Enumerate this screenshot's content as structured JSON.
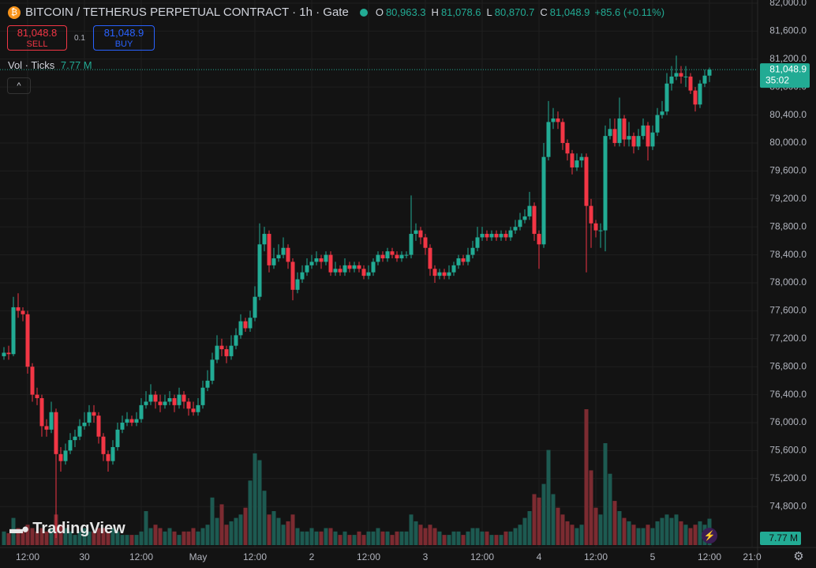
{
  "chart_data": {
    "type": "candlestick",
    "title": "BITCOIN / TETHERUS PERPETUAL CONTRACT · 1h · Gate",
    "legend": [
      {
        "key": "O",
        "label": "80,963.3"
      },
      {
        "key": "H",
        "label": "81,078.6"
      },
      {
        "key": "L",
        "label": "80,870.7"
      },
      {
        "key": "C",
        "label": "81,048.9"
      }
    ],
    "change": "+85.6 (+0.11%)",
    "volume_title": "Vol · Ticks",
    "volume_label": "7.77 M",
    "last_price_label": "81,048.9",
    "countdown": "35:02",
    "up_color": "#22ab94",
    "down_color": "#f23645",
    "up_volume_color": "#1d5a51",
    "down_volume_color": "#7c2b31",
    "grid": true,
    "ylim": [
      74192,
      82045
    ],
    "yticks": [
      {
        "value": 74800,
        "label": "74,800.0"
      },
      {
        "value": 75200,
        "label": "75,200.0"
      },
      {
        "value": 75600,
        "label": "75,600.0"
      },
      {
        "value": 76000,
        "label": "76,000.0"
      },
      {
        "value": 76400,
        "label": "76,400.0"
      },
      {
        "value": 76800,
        "label": "76,800.0"
      },
      {
        "value": 77200,
        "label": "77,200.0"
      },
      {
        "value": 77600,
        "label": "77,600.0"
      },
      {
        "value": 78000,
        "label": "78,000.0"
      },
      {
        "value": 78400,
        "label": "78,400.0"
      },
      {
        "value": 78800,
        "label": "78,800.0"
      },
      {
        "value": 79200,
        "label": "79,200.0"
      },
      {
        "value": 79600,
        "label": "79,600.0"
      },
      {
        "value": 80000,
        "label": "80,000.0"
      },
      {
        "value": 80400,
        "label": "80,400.0"
      },
      {
        "value": 80800,
        "label": "80,800.0"
      },
      {
        "value": 81200,
        "label": "81,200.0"
      },
      {
        "value": 81600,
        "label": "81,600.0"
      },
      {
        "value": 82000,
        "label": "82,000.0"
      }
    ],
    "categories": [
      null,
      null,
      null,
      null,
      null,
      "12:00",
      null,
      null,
      null,
      null,
      null,
      null,
      null,
      null,
      null,
      null,
      null,
      "30",
      null,
      null,
      null,
      null,
      null,
      null,
      null,
      null,
      null,
      null,
      null,
      "12:00",
      null,
      null,
      null,
      null,
      null,
      null,
      null,
      null,
      null,
      null,
      null,
      "May",
      null,
      null,
      null,
      null,
      null,
      null,
      null,
      null,
      null,
      null,
      null,
      "12:00",
      null,
      null,
      null,
      null,
      null,
      null,
      null,
      null,
      null,
      null,
      null,
      "2",
      null,
      null,
      null,
      null,
      null,
      null,
      null,
      null,
      null,
      null,
      null,
      "12:00",
      null,
      null,
      null,
      null,
      null,
      null,
      null,
      null,
      null,
      null,
      null,
      "3",
      null,
      null,
      null,
      null,
      null,
      null,
      null,
      null,
      null,
      null,
      null,
      "12:00",
      null,
      null,
      null,
      null,
      null,
      null,
      null,
      null,
      null,
      null,
      null,
      "4",
      null,
      null,
      null,
      null,
      null,
      null,
      null,
      null,
      null,
      null,
      null,
      "12:00",
      null,
      null,
      null,
      null,
      null,
      null,
      null,
      null,
      null,
      null,
      null,
      "5",
      null,
      null,
      null,
      null,
      null,
      null,
      null,
      null,
      null,
      null,
      null,
      "12:00",
      null,
      null,
      null,
      null,
      null,
      null,
      null,
      null,
      "21:0"
    ],
    "open": [
      76950,
      77000,
      76980,
      77650,
      77600,
      77550,
      76800,
      76400,
      76350,
      75950,
      75900,
      76150,
      75550,
      75450,
      75600,
      75750,
      75800,
      75950,
      76000,
      76150,
      76100,
      75800,
      75550,
      75450,
      75650,
      75900,
      76000,
      76050,
      76000,
      76050,
      76250,
      76300,
      76400,
      76300,
      76250,
      76300,
      76350,
      76250,
      76400,
      76300,
      76200,
      76150,
      76250,
      76500,
      76600,
      76900,
      77100,
      77050,
      76950,
      77100,
      77250,
      77450,
      77350,
      77500,
      77800,
      78550,
      78700,
      78250,
      78350,
      78400,
      78500,
      78300,
      77900,
      78050,
      78150,
      78250,
      78300,
      78350,
      78300,
      78400,
      78150,
      78200,
      78150,
      78250,
      78200,
      78250,
      78200,
      78100,
      78150,
      78300,
      78400,
      78350,
      78450,
      78400,
      78350,
      78400,
      78400,
      78700,
      78750,
      78650,
      78500,
      78200,
      78100,
      78150,
      78100,
      78150,
      78250,
      78350,
      78300,
      78400,
      78500,
      78650,
      78700,
      78650,
      78700,
      78650,
      78700,
      78650,
      78750,
      78800,
      78900,
      78950,
      79100,
      78700,
      78550,
      79800,
      80300,
      80350,
      80300,
      80000,
      79850,
      79650,
      79750,
      79800,
      79100,
      78850,
      78750,
      78750,
      80100,
      80200,
      80000,
      80350,
      80050,
      80100,
      79950,
      80100,
      80250,
      79950,
      80150,
      80400,
      80450,
      80850,
      80950,
      81000,
      80950,
      80950,
      80750,
      80550,
      80850,
      80963.3,
      null,
      null,
      null,
      null,
      null,
      null,
      null,
      null,
      null
    ],
    "high": [
      77080,
      77100,
      77800,
      77850,
      77650,
      77600,
      76850,
      76500,
      76400,
      76050,
      76300,
      76200,
      75650,
      75700,
      75850,
      75900,
      76050,
      76150,
      76250,
      76250,
      76150,
      75850,
      75600,
      75750,
      76000,
      76100,
      76150,
      76100,
      76150,
      76350,
      76450,
      76550,
      76450,
      76400,
      76400,
      76450,
      76400,
      76500,
      76450,
      76350,
      76300,
      76350,
      76600,
      76750,
      77000,
      77250,
      77200,
      77100,
      77250,
      77350,
      77550,
      77500,
      77600,
      77950,
      78850,
      78800,
      78750,
      78500,
      78550,
      78650,
      78550,
      78350,
      78150,
      78250,
      78350,
      78400,
      78450,
      78400,
      78450,
      78450,
      78300,
      78250,
      78350,
      78300,
      78300,
      78300,
      78250,
      78250,
      78350,
      78450,
      78450,
      78500,
      78500,
      78450,
      78450,
      78450,
      79250,
      78850,
      78800,
      78700,
      78550,
      78250,
      78200,
      78200,
      78250,
      78300,
      78400,
      78400,
      78500,
      78600,
      78800,
      78800,
      78750,
      78750,
      78750,
      78750,
      78750,
      78800,
      78900,
      79000,
      79050,
      79300,
      79150,
      78750,
      80000,
      80600,
      80500,
      80450,
      80350,
      80050,
      79900,
      79850,
      79850,
      79850,
      79200,
      78900,
      78850,
      80250,
      80350,
      80350,
      80650,
      80400,
      80300,
      80150,
      80200,
      80350,
      80300,
      80250,
      80500,
      80600,
      81000,
      81100,
      81250,
      81100,
      81100,
      81000,
      80800,
      80900,
      81050,
      81078.6,
      null,
      null,
      null,
      null,
      null,
      null,
      null,
      null,
      null
    ],
    "low": [
      76900,
      76900,
      76950,
      77500,
      77450,
      76700,
      76300,
      76250,
      75800,
      75800,
      75850,
      74350,
      75300,
      75400,
      75550,
      75650,
      75750,
      75900,
      75950,
      76000,
      75700,
      75450,
      75300,
      75400,
      75600,
      75850,
      75950,
      75950,
      75950,
      76000,
      76200,
      76250,
      76200,
      76150,
      76200,
      76250,
      76150,
      76200,
      76200,
      76100,
      76100,
      76100,
      76200,
      76450,
      76550,
      76850,
      76950,
      76850,
      76900,
      77050,
      77200,
      77300,
      77300,
      77450,
      77750,
      78450,
      78150,
      78200,
      78300,
      78350,
      78200,
      77750,
      77850,
      78000,
      78100,
      78200,
      78250,
      78200,
      78250,
      78100,
      78100,
      78100,
      78100,
      78150,
      78150,
      78150,
      78050,
      78050,
      78100,
      78250,
      78300,
      78300,
      78350,
      78300,
      78300,
      78350,
      78350,
      78600,
      78550,
      78400,
      78100,
      78000,
      78050,
      78050,
      78050,
      78100,
      78200,
      78250,
      78250,
      78350,
      78450,
      78600,
      78600,
      78600,
      78600,
      78600,
      78600,
      78600,
      78700,
      78750,
      78850,
      78900,
      78600,
      78200,
      78500,
      79750,
      80200,
      80200,
      79900,
      79750,
      79550,
      79600,
      79650,
      78150,
      78500,
      78650,
      78500,
      78450,
      80050,
      79950,
      79950,
      79950,
      79950,
      79850,
      79900,
      80050,
      79750,
      79900,
      80100,
      80350,
      80400,
      80750,
      80900,
      80850,
      80800,
      80700,
      80450,
      80500,
      80800,
      80870.7,
      null,
      null,
      null,
      null,
      null,
      null,
      null,
      null,
      null
    ],
    "close": [
      77000,
      76980,
      77650,
      77600,
      77550,
      76800,
      76400,
      76350,
      75950,
      75900,
      76150,
      75550,
      75450,
      75600,
      75750,
      75800,
      75950,
      76000,
      76150,
      76100,
      75800,
      75550,
      75450,
      75650,
      75900,
      76000,
      76050,
      76000,
      76050,
      76250,
      76300,
      76400,
      76300,
      76250,
      76300,
      76350,
      76250,
      76400,
      76300,
      76200,
      76150,
      76250,
      76500,
      76600,
      76900,
      77100,
      77050,
      76950,
      77100,
      77250,
      77450,
      77350,
      77500,
      77800,
      78550,
      78700,
      78250,
      78350,
      78400,
      78500,
      78300,
      77900,
      78050,
      78150,
      78250,
      78300,
      78350,
      78300,
      78400,
      78150,
      78200,
      78150,
      78250,
      78200,
      78250,
      78200,
      78100,
      78150,
      78300,
      78400,
      78350,
      78450,
      78400,
      78350,
      78400,
      78400,
      78700,
      78750,
      78650,
      78500,
      78200,
      78100,
      78150,
      78100,
      78150,
      78250,
      78350,
      78300,
      78400,
      78500,
      78650,
      78700,
      78650,
      78700,
      78650,
      78700,
      78650,
      78750,
      78800,
      78900,
      78950,
      79100,
      78700,
      78550,
      79800,
      80300,
      80350,
      80300,
      80000,
      79850,
      79650,
      79750,
      79800,
      79100,
      78850,
      78750,
      78750,
      80100,
      80200,
      80000,
      80350,
      80050,
      80100,
      79950,
      80100,
      80250,
      79950,
      80150,
      80400,
      80450,
      80850,
      80950,
      81000,
      80950,
      80950,
      80750,
      80550,
      80850,
      80963.3,
      81048.9,
      null,
      null,
      null,
      null,
      null,
      null,
      null,
      null,
      null
    ],
    "volume": [
      4,
      3.5,
      8,
      5,
      4,
      6,
      5,
      4,
      5,
      4,
      5,
      9,
      6,
      5,
      4,
      3,
      4,
      5,
      4,
      4,
      5,
      5,
      4,
      5,
      4,
      3,
      3,
      3,
      3,
      4,
      10,
      5,
      6,
      5,
      4,
      5,
      4,
      3,
      4,
      4,
      5,
      4,
      5,
      6,
      14,
      8,
      12,
      6,
      7,
      8,
      9,
      11,
      19,
      27,
      25,
      16,
      9,
      10,
      8,
      6,
      7,
      9,
      5,
      4,
      4,
      5,
      4,
      4,
      5,
      5,
      4,
      3,
      4,
      3,
      3,
      4,
      3,
      4,
      4,
      5,
      4,
      4,
      3,
      4,
      4,
      4,
      9,
      7,
      6,
      5,
      6,
      5,
      4,
      3,
      3,
      4,
      4,
      3,
      4,
      5,
      5,
      4,
      4,
      3,
      3,
      3,
      4,
      4,
      5,
      6,
      8,
      10,
      15,
      14,
      18,
      28,
      15,
      11,
      9,
      7,
      6,
      5,
      6,
      40,
      22,
      11,
      9,
      30,
      21,
      13,
      10,
      8,
      7,
      6,
      5,
      5,
      6,
      5,
      7,
      8,
      9,
      8,
      9,
      7,
      6,
      5,
      6,
      7,
      6,
      7.77,
      null,
      null,
      null,
      null,
      null,
      null,
      null,
      null,
      null
    ]
  },
  "trade": {
    "sell_price": "81,048.8",
    "sell": "SELL",
    "quantity": "0.1",
    "buy_price": "81,048.9",
    "buy": "BUY"
  },
  "branding": "TradingView"
}
